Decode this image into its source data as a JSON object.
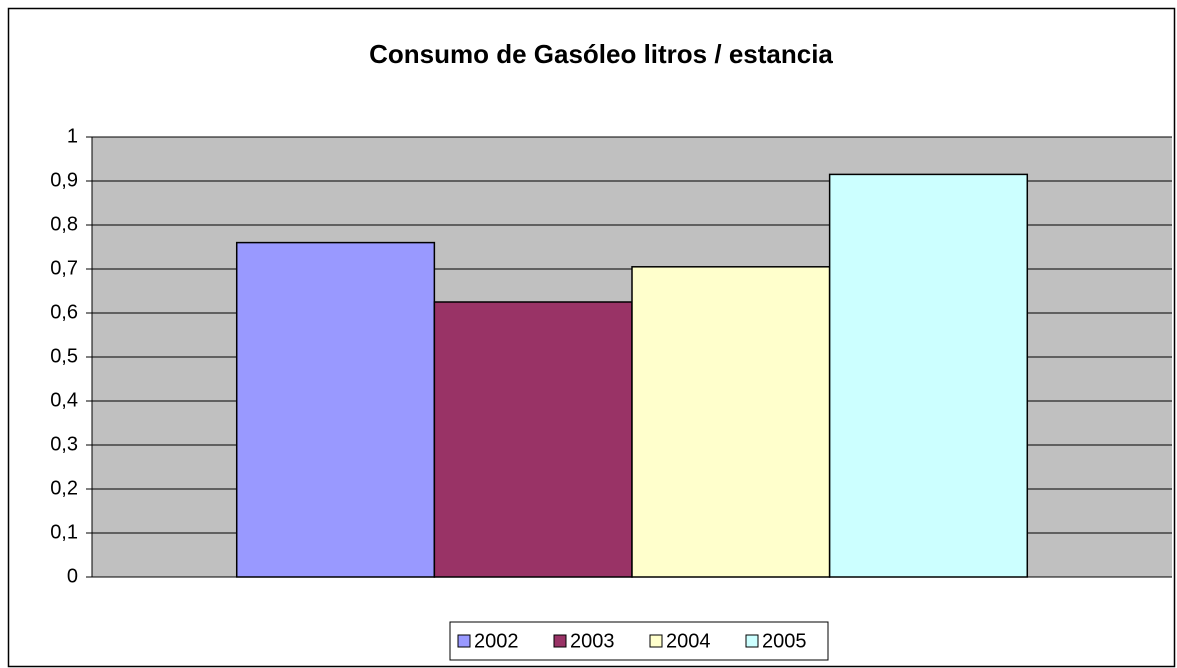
{
  "chart_data": {
    "type": "bar",
    "title": "Consumo de Gasóleo litros / estancia",
    "categories": [
      null
    ],
    "series": [
      {
        "name": "2002",
        "color": "#9999ff",
        "values": [
          0.76
        ]
      },
      {
        "name": "2003",
        "color": "#993366",
        "values": [
          0.625
        ]
      },
      {
        "name": "2004",
        "color": "#ffffcc",
        "values": [
          0.705
        ]
      },
      {
        "name": "2005",
        "color": "#ccffff",
        "values": [
          0.915
        ]
      }
    ],
    "ylim": [
      0,
      1
    ],
    "yticks": [
      0,
      {
        "value": 0.1,
        "label": "0,1"
      },
      {
        "value": 0.2,
        "label": "0,2"
      },
      {
        "value": 0.3,
        "label": "0,3"
      },
      {
        "value": 0.4,
        "label": "0,4"
      },
      {
        "value": 0.5,
        "label": "0,5"
      },
      {
        "value": 0.6,
        "label": "0,6"
      },
      {
        "value": 0.7,
        "label": "0,7"
      },
      {
        "value": 0.8,
        "label": "0,8"
      },
      {
        "value": 0.9,
        "label": "0,9"
      },
      1
    ],
    "grid": true,
    "legend": "bottom",
    "plot_background": "#c0c0c0"
  }
}
